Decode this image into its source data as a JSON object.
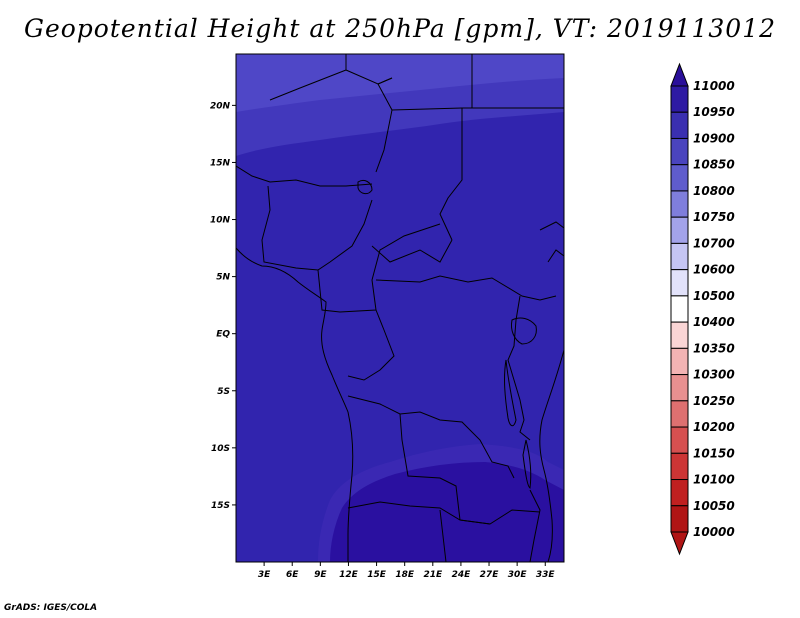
{
  "title": "Geopotential Height at 250hPa [gpm], VT: 2019113012",
  "credit": "GrADS: IGES/COLA",
  "map": {
    "lat_range": [
      -20,
      24.5
    ],
    "lon_range": [
      0,
      35
    ],
    "lat_ticks": [
      {
        "value": 20,
        "label": "20N"
      },
      {
        "value": 15,
        "label": "15N"
      },
      {
        "value": 10,
        "label": "10N"
      },
      {
        "value": 5,
        "label": "5N"
      },
      {
        "value": 0,
        "label": "EQ"
      },
      {
        "value": -5,
        "label": "5S"
      },
      {
        "value": -10,
        "label": "10S"
      },
      {
        "value": -15,
        "label": "15S"
      }
    ],
    "lon_ticks": [
      {
        "value": 3,
        "label": "3E"
      },
      {
        "value": 6,
        "label": "6E"
      },
      {
        "value": 9,
        "label": "9E"
      },
      {
        "value": 12,
        "label": "12E"
      },
      {
        "value": 15,
        "label": "15E"
      },
      {
        "value": 18,
        "label": "18E"
      },
      {
        "value": 21,
        "label": "21E"
      },
      {
        "value": 24,
        "label": "24E"
      },
      {
        "value": 27,
        "label": "27E"
      },
      {
        "value": 30,
        "label": "30E"
      },
      {
        "value": 33,
        "label": "33E"
      }
    ]
  },
  "colorbar": {
    "levels": [
      "11000",
      "10950",
      "10900",
      "10850",
      "10800",
      "10750",
      "10700",
      "10600",
      "10500",
      "10400",
      "10350",
      "10300",
      "10250",
      "10200",
      "10150",
      "10100",
      "10050",
      "10000"
    ],
    "colors": [
      "#2a0f9a",
      "#2e1aa3",
      "#3a2fb0",
      "#4a44be",
      "#5f5ccc",
      "#7f7edc",
      "#a3a3ea",
      "#c5c5f3",
      "#e2e2fa",
      "#ffffff",
      "#fad5d5",
      "#f3b3b3",
      "#e89090",
      "#de7070",
      "#d65050",
      "#cc3535",
      "#c02020",
      "#b01515"
    ]
  },
  "field_colors": {
    "base": "#3124ae",
    "north_band": "#4238bc",
    "north_top": "#4f47c7",
    "south_high": "#2a10a0",
    "south_rim": "#3a28b3"
  }
}
